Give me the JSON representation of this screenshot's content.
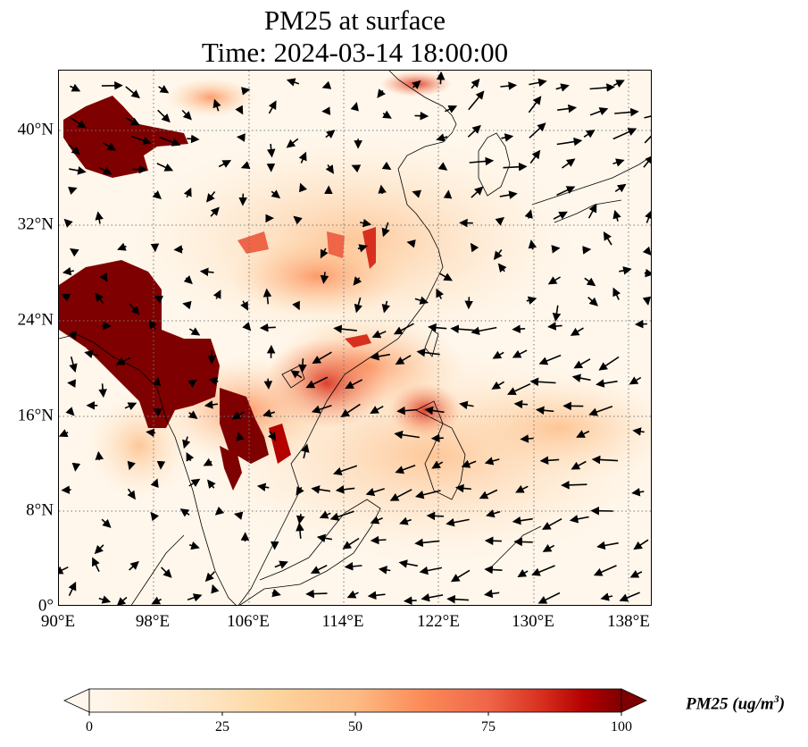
{
  "title": {
    "line1": "PM25 at surface",
    "line2": "Time: 2024-03-14 18:00:00"
  },
  "map": {
    "lon_range": [
      90,
      140
    ],
    "lat_range": [
      0,
      45
    ],
    "lat_ticks": [
      {
        "value": 0,
        "label": "0°"
      },
      {
        "value": 8,
        "label": "8°N"
      },
      {
        "value": 16,
        "label": "16°N"
      },
      {
        "value": 24,
        "label": "24°N"
      },
      {
        "value": 32,
        "label": "32°N"
      },
      {
        "value": 40,
        "label": "40°N"
      }
    ],
    "lon_ticks": [
      {
        "value": 90,
        "label": "90°E"
      },
      {
        "value": 98,
        "label": "98°E"
      },
      {
        "value": 106,
        "label": "106°E"
      },
      {
        "value": 114,
        "label": "114°E"
      },
      {
        "value": 122,
        "label": "122°E"
      },
      {
        "value": 130,
        "label": "130°E"
      },
      {
        "value": 138,
        "label": "138°E"
      }
    ],
    "gridlines": "dotted",
    "wind_vectors": "shown"
  },
  "colorbar": {
    "colormap": "OrRd",
    "min": 0,
    "max": 100,
    "extend": "both",
    "ticks": [
      "0",
      "25",
      "50",
      "75",
      "100"
    ],
    "label": "PM25",
    "unit_prefix": "ug/m",
    "unit_exponent": "3"
  },
  "colors": {
    "low": "#fff7ec",
    "mid": "#fdd49e",
    "high": "#ef6548",
    "max": "#7f0000"
  }
}
